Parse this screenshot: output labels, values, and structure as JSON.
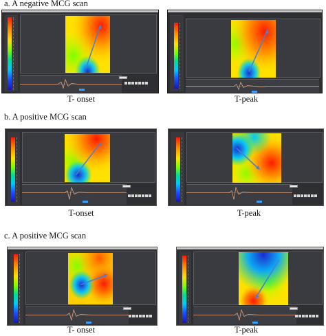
{
  "sections": [
    {
      "title": "a. A negative MCG scan",
      "captions": [
        "T- onset",
        "T-peak"
      ]
    },
    {
      "title": "b. A positive MCG scan",
      "captions": [
        "T-onset",
        "T-peak"
      ]
    },
    {
      "title": "c.  A positive MCG scan",
      "captions": [
        "T- onset",
        "T-peak"
      ]
    }
  ],
  "colors": {
    "panel_bg": "#2e2f33",
    "colorbar": [
      "#ff1a00",
      "#ffe100",
      "#7cff00",
      "#00c8ff",
      "#1a16b0"
    ],
    "vector": "#4a7fd4"
  }
}
